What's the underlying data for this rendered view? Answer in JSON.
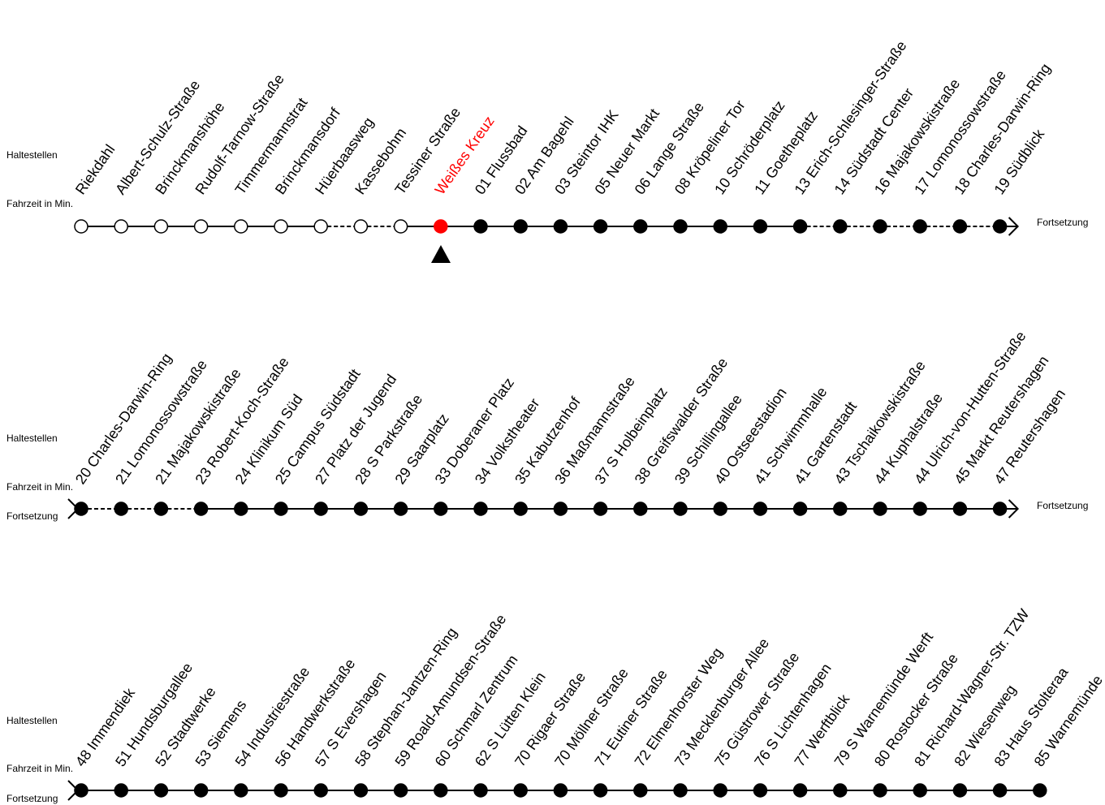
{
  "labels": {
    "stops": "Haltestellen",
    "travel_time": "Fahrzeit in Min.",
    "continuation": "Fortsetzung"
  },
  "colors": {
    "line": "#000000",
    "past_stop_fill": "#ffffff",
    "future_stop_fill": "#000000",
    "current_stop": "#ff0000"
  },
  "current_stop_index": 9,
  "rows": [
    {
      "starts_with_continuation": false,
      "ends_with_arrow": true,
      "stops": [
        {
          "label": "Riekdahl",
          "state": "past"
        },
        {
          "label": "Albert-Schulz-Straße",
          "state": "past"
        },
        {
          "label": "Brinckmanshöhe",
          "state": "past"
        },
        {
          "label": "Rudolf-Tarnow-Straße",
          "state": "past"
        },
        {
          "label": "Timmermannstrat",
          "state": "past"
        },
        {
          "label": "Brinckmansdorf",
          "state": "past"
        },
        {
          "label": "Hüerbaasweg",
          "state": "past"
        },
        {
          "label": "Kassebohm",
          "state": "past"
        },
        {
          "label": "Tessiner Straße",
          "state": "past"
        },
        {
          "label": "Weißes Kreuz",
          "state": "current"
        },
        {
          "label": "01  Flussbad",
          "state": "future"
        },
        {
          "label": "02  Am Bagehl",
          "state": "future"
        },
        {
          "label": "03  Steintor IHK",
          "state": "future"
        },
        {
          "label": "05  Neuer Markt",
          "state": "future"
        },
        {
          "label": "06  Lange Straße",
          "state": "future"
        },
        {
          "label": "08  Kröpeliner Tor",
          "state": "future"
        },
        {
          "label": "10  Schröderplatz",
          "state": "future"
        },
        {
          "label": "11  Goetheplatz",
          "state": "future"
        },
        {
          "label": "13  Erich-Schlesinger-Straße",
          "state": "future"
        },
        {
          "label": "14  Südstadt Center",
          "state": "future"
        },
        {
          "label": "16  Majakowskistraße",
          "state": "future"
        },
        {
          "label": "17  Lomonossowstraße",
          "state": "future"
        },
        {
          "label": "18  Charles-Darwin-Ring",
          "state": "future"
        },
        {
          "label": "19  Südblick",
          "state": "future"
        }
      ],
      "dashed_segments": [
        6,
        7,
        18,
        19,
        20,
        21,
        22
      ]
    },
    {
      "starts_with_continuation": true,
      "ends_with_arrow": true,
      "stops": [
        {
          "label": "20  Charles-Darwin-Ring",
          "state": "future"
        },
        {
          "label": "21  Lomonossowstraße",
          "state": "future"
        },
        {
          "label": "21  Majakowskistraße",
          "state": "future"
        },
        {
          "label": "23  Robert-Koch-Straße",
          "state": "future"
        },
        {
          "label": "24  Klinikum Süd",
          "state": "future"
        },
        {
          "label": "25  Campus Südstadt",
          "state": "future"
        },
        {
          "label": "27  Platz der Jugend",
          "state": "future"
        },
        {
          "label": "28  S Parkstraße",
          "state": "future"
        },
        {
          "label": "29  Saarplatz",
          "state": "future"
        },
        {
          "label": "33  Doberaner Platz",
          "state": "future"
        },
        {
          "label": "34  Volkstheater",
          "state": "future"
        },
        {
          "label": "35  Kabutzenhof",
          "state": "future"
        },
        {
          "label": "36  Maßmannstraße",
          "state": "future"
        },
        {
          "label": "37  S Holbeinplatz",
          "state": "future"
        },
        {
          "label": "38  Greifswalder Straße",
          "state": "future"
        },
        {
          "label": "39  Schillingallee",
          "state": "future"
        },
        {
          "label": "40  Ostseestadion",
          "state": "future"
        },
        {
          "label": "41  Schwimmhalle",
          "state": "future"
        },
        {
          "label": "41  Gartenstadt",
          "state": "future"
        },
        {
          "label": "43  Tschaikowskistraße",
          "state": "future"
        },
        {
          "label": "44  Kuphalstraße",
          "state": "future"
        },
        {
          "label": "44  Ulrich-von-Hutten-Straße",
          "state": "future"
        },
        {
          "label": "45  Markt Reutershagen",
          "state": "future"
        },
        {
          "label": "47  Reutershagen",
          "state": "future"
        }
      ],
      "dashed_segments": [
        0,
        1,
        2
      ]
    },
    {
      "starts_with_continuation": true,
      "ends_with_arrow": false,
      "stops": [
        {
          "label": "48  Immendiek",
          "state": "future"
        },
        {
          "label": "51  Hundsburgallee",
          "state": "future"
        },
        {
          "label": "52  Stadtwerke",
          "state": "future"
        },
        {
          "label": "53  Siemens",
          "state": "future"
        },
        {
          "label": "54  Industriestraße",
          "state": "future"
        },
        {
          "label": "56  Handwerkstraße",
          "state": "future"
        },
        {
          "label": "57  S Evershagen",
          "state": "future"
        },
        {
          "label": "58  Stephan-Jantzen-Ring",
          "state": "future"
        },
        {
          "label": "59  Roald-Amundsen-Straße",
          "state": "future"
        },
        {
          "label": "60  Schmarl Zentrum",
          "state": "future"
        },
        {
          "label": "62  S Lütten Klein",
          "state": "future"
        },
        {
          "label": "70  Rigaer Straße",
          "state": "future"
        },
        {
          "label": "70  Möllner Straße",
          "state": "future"
        },
        {
          "label": "71  Eutiner Straße",
          "state": "future"
        },
        {
          "label": "72  Elmenhorster Weg",
          "state": "future"
        },
        {
          "label": "73  Mecklenburger Allee",
          "state": "future"
        },
        {
          "label": "75  Güstrower Straße",
          "state": "future"
        },
        {
          "label": "76  S Lichtenhagen",
          "state": "future"
        },
        {
          "label": "77  Werftblick",
          "state": "future"
        },
        {
          "label": "79  S Warnemünde Werft",
          "state": "future"
        },
        {
          "label": "80  Rostocker Straße",
          "state": "future"
        },
        {
          "label": "81  Richard-Wagner-Str. TZW",
          "state": "future"
        },
        {
          "label": "82  Wiesenweg",
          "state": "future"
        },
        {
          "label": "83  Haus Stolteraa",
          "state": "future"
        },
        {
          "label": "85  Warnemünde",
          "state": "future"
        }
      ],
      "dashed_segments": []
    }
  ]
}
